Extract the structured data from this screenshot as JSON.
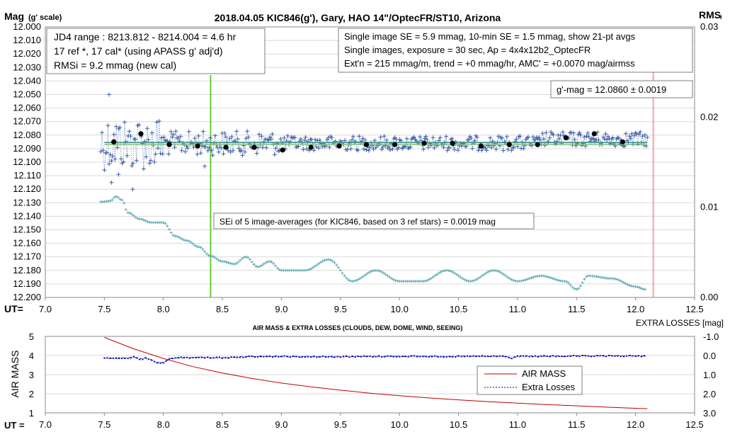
{
  "title": "2018.04.05  KIC846(g'),  Gary, HAO 14\"/OptecFR/ST10,  Arizona",
  "left_axis_label": "Mag",
  "left_axis_label_sub": "(g' scale)",
  "right_axis_label": "RMS",
  "right_axis_label_sub": "i",
  "ut_label": "UT=",
  "ut_label_bottom": "UT =",
  "info_box_left": [
    "JD4 range : 8213.812 - 8214.004 = 4.6  hr",
    "17 ref *, 17 cal* (using APASS g' adj'd)",
    "RMSi = 9.2 mmag (new cal)"
  ],
  "info_box_right": [
    "Single image SE = 5.9 mmag, 10-min SE = 1.5 mmag, show  21-pt avgs",
    "Single images, exposure = 30 sec, Ap = 4x4x12b2_OptecFR",
    "Ext'n = 215 mmag/m, trend =  +0 mmag/hr, AMC' = +0.0070 mag/airmss"
  ],
  "gmag_box": "g'-mag = 12.0860 ± 0.0019",
  "sei_box": "SEi of 5 image-averages (for KIC846, based on 3 ref stars) = 0.0019  mag",
  "colors": {
    "points": "#3a5fa8",
    "dotted_line": "#5b7fc4",
    "avg_dots": "#000000",
    "trend_line": "#4c9a8c",
    "rms_trace": "#5aa7b0",
    "green_marker": "#66cc33",
    "pink_marker": "#f4a0b0",
    "air_mass": "#c00000",
    "extra_losses": "#0000b0",
    "grid": "#d9d9d9"
  },
  "chart_data": [
    {
      "type": "scatter",
      "title": "2018.04.05  KIC846(g'),  Gary, HAO 14\"/OptecFR/ST10,  Arizona",
      "xlabel": "UT=",
      "ylabel": "Mag (g' scale)",
      "y2label": "RMS i",
      "xlim": [
        7.0,
        12.5
      ],
      "ylim": [
        12.2,
        12.0
      ],
      "y_inverted": true,
      "y2lim": [
        0.0,
        0.03
      ],
      "x_ticks": [
        "7.0",
        "7.5",
        "8.0",
        "8.5",
        "9.0",
        "9.5",
        "10.0",
        "10.5",
        "11.0",
        "11.5",
        "12.0",
        "12.5"
      ],
      "y_ticks": [
        "12.000",
        "12.010",
        "12.020",
        "12.030",
        "12.040",
        "12.050",
        "12.060",
        "12.070",
        "12.080",
        "12.090",
        "12.100",
        "12.110",
        "12.120",
        "12.130",
        "12.140",
        "12.150",
        "12.160",
        "12.170",
        "12.180",
        "12.190",
        "12.200"
      ],
      "y2_ticks": [
        "0.03",
        "0.02",
        "0.01",
        "0.00"
      ],
      "single_image_range": [
        7.47,
        12.1
      ],
      "averages": {
        "x": [
          7.58,
          7.81,
          8.05,
          8.29,
          8.53,
          8.77,
          9.01,
          9.25,
          9.49,
          9.72,
          9.96,
          10.21,
          10.45,
          10.69,
          10.93,
          11.17,
          11.41,
          11.65,
          11.89
        ],
        "y": [
          12.085,
          12.079,
          12.087,
          12.088,
          12.089,
          12.089,
          12.091,
          12.089,
          12.088,
          12.087,
          12.087,
          12.086,
          12.086,
          12.088,
          12.087,
          12.087,
          12.082,
          12.079,
          12.085
        ]
      },
      "trend_line": {
        "x": [
          7.5,
          12.1
        ],
        "y": [
          12.086,
          12.086
        ]
      },
      "rms_trace": {
        "x": [
          7.47,
          7.55,
          7.6,
          7.65,
          7.7,
          7.8,
          7.9,
          8.0,
          8.1,
          8.2,
          8.3,
          8.4,
          8.5,
          8.6,
          8.7,
          8.8,
          8.9,
          9.0,
          9.2,
          9.4,
          9.6,
          9.8,
          10.0,
          10.2,
          10.4,
          10.6,
          10.8,
          11.0,
          11.2,
          11.4,
          11.5,
          11.6,
          11.8,
          12.0,
          12.08
        ],
        "y": [
          0.0106,
          0.0107,
          0.0112,
          0.0108,
          0.0094,
          0.0087,
          0.0083,
          0.0083,
          0.0068,
          0.0063,
          0.0056,
          0.0046,
          0.004,
          0.0037,
          0.0045,
          0.0034,
          0.004,
          0.003,
          0.003,
          0.0042,
          0.0018,
          0.003,
          0.0018,
          0.0018,
          0.003,
          0.0018,
          0.003,
          0.0018,
          0.0024,
          0.0018,
          0.0009,
          0.0024,
          0.0021,
          0.0012,
          0.0009
        ]
      },
      "green_marker_x": 8.4,
      "pink_marker_x": 12.15
    },
    {
      "type": "line",
      "title": "AIR MASS & EXTRA LOSSES (CLOUDS, DEW, DOME, WIND, SEEING)",
      "xlabel": "UT =",
      "ylabel": "AIR MASS",
      "y2label": "EXTRA LOSSES [mag]",
      "xlim": [
        7.0,
        12.5
      ],
      "ylim": [
        1,
        5
      ],
      "y2lim": [
        -1.0,
        3.0
      ],
      "y2_inverted": true,
      "x_ticks": [
        "7.0",
        "7.5",
        "8.0",
        "8.5",
        "9.0",
        "9.5",
        "10.0",
        "10.5",
        "11.0",
        "11.5",
        "12.0",
        "12.5"
      ],
      "y_ticks": [
        "1",
        "2",
        "3",
        "4",
        "5"
      ],
      "y2_ticks": [
        "-1.0",
        "0.0",
        "1.0",
        "2.0",
        "3.0"
      ],
      "legend": [
        "AIR MASS",
        "Extra Losses"
      ],
      "legend_position": "lower-right",
      "series": [
        {
          "name": "AIR MASS",
          "x": [
            7.5,
            7.75,
            8.0,
            8.25,
            8.5,
            8.75,
            9.0,
            9.25,
            9.5,
            9.75,
            10.0,
            10.25,
            10.5,
            10.75,
            11.0,
            11.25,
            11.5,
            11.75,
            12.0,
            12.1
          ],
          "values": [
            4.95,
            4.35,
            3.85,
            3.42,
            3.08,
            2.8,
            2.56,
            2.36,
            2.19,
            2.03,
            1.9,
            1.78,
            1.68,
            1.59,
            1.51,
            1.43,
            1.37,
            1.3,
            1.24,
            1.22
          ]
        },
        {
          "name": "Extra Losses",
          "x": [
            7.5,
            7.6,
            7.7,
            7.75,
            7.8,
            7.85,
            7.9,
            7.95,
            8.0,
            8.05,
            8.1,
            8.3,
            8.5,
            8.7,
            9.0,
            9.5,
            10.0,
            10.5,
            10.9,
            10.95,
            11.0,
            11.2,
            11.5,
            12.0,
            12.1
          ],
          "values": [
            0.15,
            0.12,
            0.15,
            0.05,
            0.2,
            0.15,
            0.25,
            0.38,
            0.38,
            0.2,
            0.12,
            0.1,
            0.12,
            0.06,
            0.05,
            0.06,
            0.04,
            0.05,
            0.04,
            0.15,
            0.05,
            0.04,
            0.03,
            0.02,
            0.03
          ]
        }
      ]
    }
  ]
}
